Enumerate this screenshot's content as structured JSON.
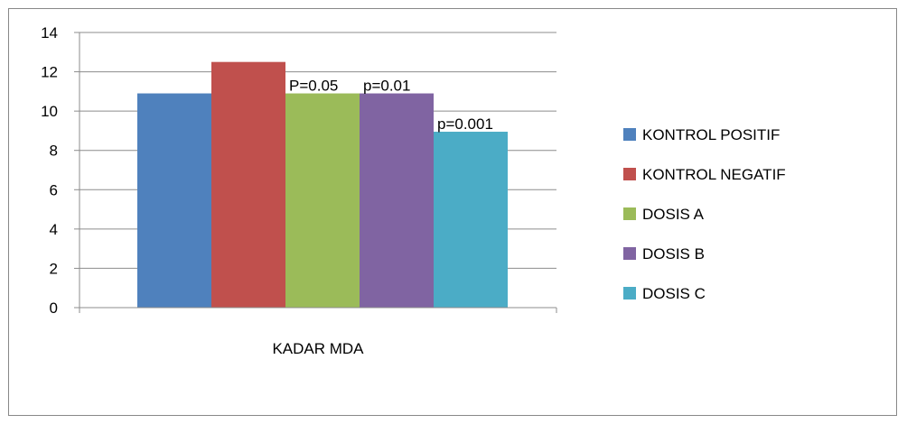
{
  "chart_data": {
    "type": "bar",
    "categories": [
      "KADAR MDA"
    ],
    "series": [
      {
        "name": "KONTROL POSITIF",
        "values": [
          10.9
        ],
        "color": "#4F81BD"
      },
      {
        "name": "KONTROL NEGATIF",
        "values": [
          12.5
        ],
        "color": "#C0504D"
      },
      {
        "name": "DOSIS A",
        "values": [
          10.9
        ],
        "color": "#9BBB59"
      },
      {
        "name": "DOSIS B",
        "values": [
          10.9
        ],
        "color": "#8064A2"
      },
      {
        "name": "DOSIS C",
        "values": [
          8.95
        ],
        "color": "#4BACC6"
      }
    ],
    "ylim": [
      0,
      14
    ],
    "yticks": [
      0,
      2,
      4,
      6,
      8,
      10,
      12,
      14
    ],
    "grid": true,
    "legend": "right",
    "annotations": [
      {
        "text": "P=0.05",
        "series": "DOSIS A"
      },
      {
        "text": "p=0.01",
        "series": "DOSIS B"
      },
      {
        "text": "p=0.001",
        "series": "DOSIS C"
      }
    ]
  }
}
